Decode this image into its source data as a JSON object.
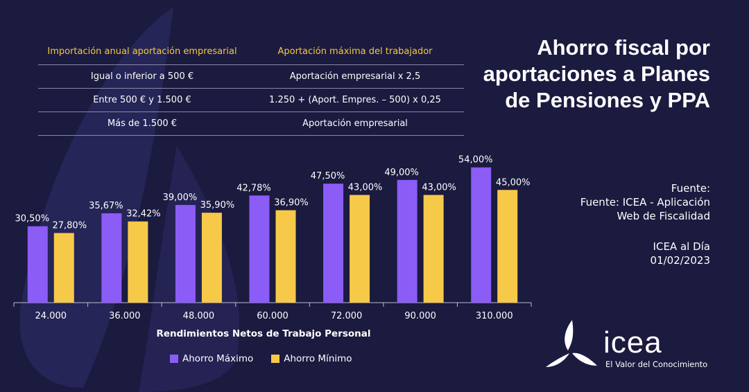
{
  "table": {
    "headers": [
      "Importación anual aportación empresarial",
      "Aportación máxima del trabajador"
    ],
    "rows": [
      [
        "Igual o inferior a 500 €",
        "Aportación empresarial x 2,5"
      ],
      [
        "Entre 500 € y 1.500 €",
        "1.250 + (Aport. Empres. – 500) x 0,25"
      ],
      [
        "Más de 1.500 €",
        "Aportación empresarial"
      ]
    ]
  },
  "title": "Ahorro fiscal por aportaciones a Planes de Pensiones y PPA",
  "source": {
    "label": "Fuente:",
    "line1": "Fuente: ICEA - Aplicación",
    "line2": "Web de Fiscalidad"
  },
  "issue": {
    "name": "ICEA al Día",
    "date": "01/02/2023"
  },
  "logo": {
    "word": "icea",
    "tagline": "El Valor del Conocimiento"
  },
  "colors": {
    "background": "#1b1a3f",
    "max": "#8b5cf6",
    "min": "#f7c948"
  },
  "chart_data": {
    "type": "bar",
    "categories": [
      "24.000",
      "36.000",
      "48.000",
      "60.000",
      "72.000",
      "90.000",
      "310.000"
    ],
    "series": [
      {
        "name": "Ahorro Máximo",
        "values": [
          30.5,
          35.67,
          39.0,
          42.78,
          47.5,
          49.0,
          54.0
        ],
        "labels": [
          "30,50%",
          "35,67%",
          "39,00%",
          "42,78%",
          "47,50%",
          "49,00%",
          "54,00%"
        ]
      },
      {
        "name": "Ahorro Mínimo",
        "values": [
          27.8,
          32.42,
          35.9,
          36.9,
          43.0,
          43.0,
          45.0
        ],
        "labels": [
          "27,80%",
          "32,42%",
          "35,90%",
          "36,90%",
          "43,00%",
          "43,00%",
          "45,00%"
        ]
      }
    ],
    "xlabel": "Rendimientos Netos de Trabajo Personal",
    "ylabel": "",
    "ylim": [
      0,
      60
    ],
    "grid": false,
    "legend": "bottom-left"
  }
}
